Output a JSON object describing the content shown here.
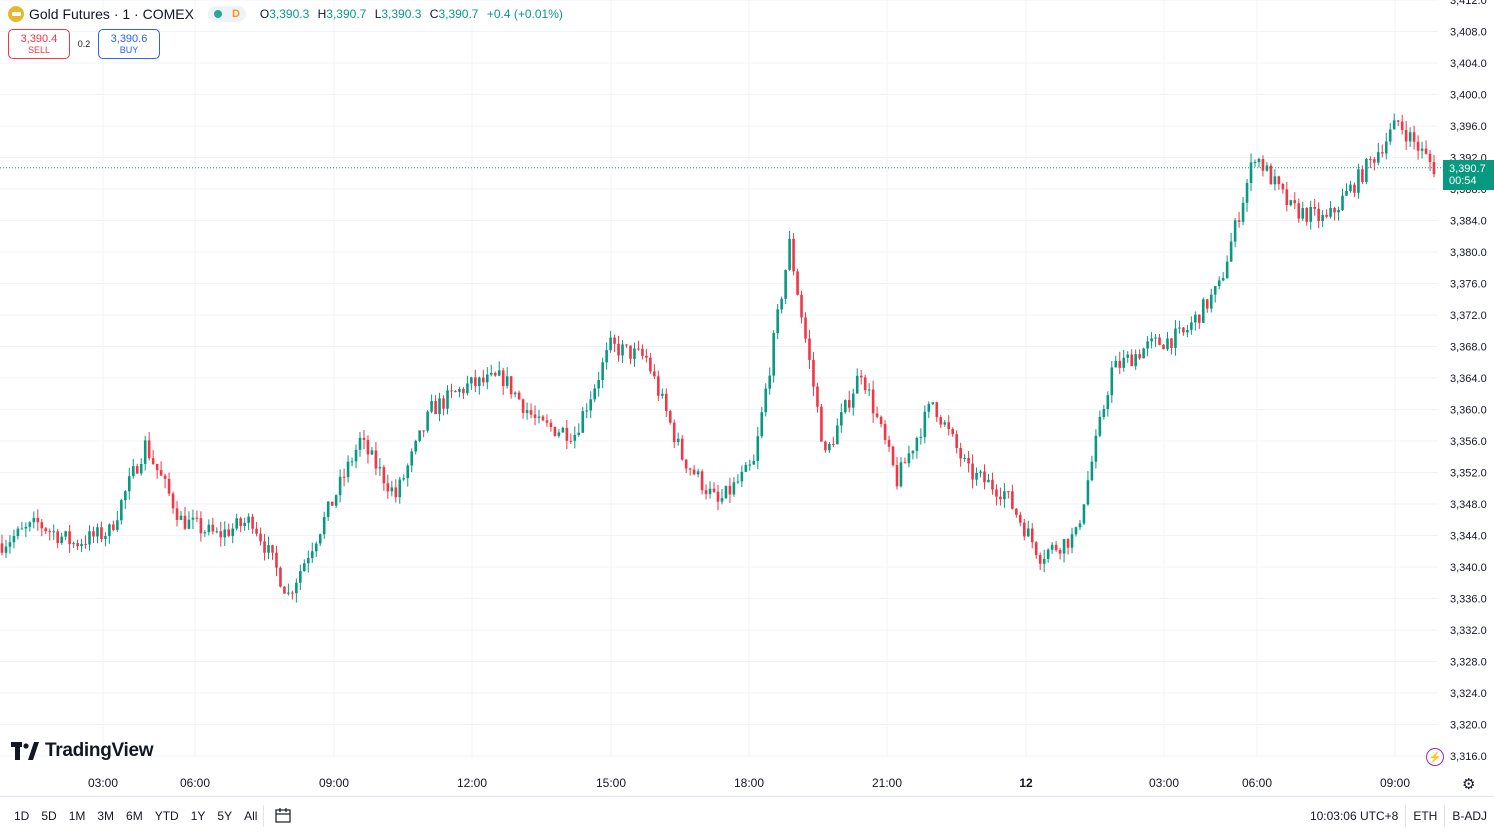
{
  "header": {
    "title": "Gold Futures · 1 · COMEX",
    "status_letter": "D",
    "ohlc": [
      {
        "key": "O",
        "value": "3,390.3"
      },
      {
        "key": "H",
        "value": "3,390.7"
      },
      {
        "key": "L",
        "value": "3,390.3"
      },
      {
        "key": "C",
        "value": "3,390.7"
      }
    ],
    "change": "+0.4 (+0.01%)"
  },
  "trade": {
    "sell_price": "3,390.4",
    "sell_label": "SELL",
    "spread": "0.2",
    "buy_price": "3,390.6",
    "buy_label": "BUY"
  },
  "last_price": {
    "price": "3,390.7",
    "countdown": "00:54"
  },
  "logo": "TradingView",
  "bottom": {
    "ranges": [
      "1D",
      "5D",
      "1M",
      "3M",
      "6M",
      "YTD",
      "1Y",
      "5Y",
      "All"
    ],
    "time": "10:03:06 UTC+8",
    "session": "ETH",
    "adjust": "B-ADJ"
  },
  "colors": {
    "up": "#089981",
    "down": "#f23645",
    "gold": "#e9b72f",
    "grid": "#f0f3fa"
  },
  "chart_data": {
    "type": "candlestick",
    "y_ticks": [
      "3,412.0",
      "3,408.0",
      "3,404.0",
      "3,400.0",
      "3,396.0",
      "3,392.0",
      "3,388.0",
      "3,384.0",
      "3,380.0",
      "3,376.0",
      "3,372.0",
      "3,368.0",
      "3,364.0",
      "3,360.0",
      "3,356.0",
      "3,352.0",
      "3,348.0",
      "3,344.0",
      "3,340.0",
      "3,336.0",
      "3,332.0",
      "3,328.0",
      "3,324.0",
      "3,320.0",
      "3,316.0"
    ],
    "x_ticks": [
      "03:00",
      "06:00",
      "09:00",
      "12:00",
      "15:00",
      "18:00",
      "21:00",
      "12",
      "03:00",
      "06:00",
      "09:00"
    ],
    "ylim": [
      3313.0,
      3412.0
    ],
    "last": 3390.7,
    "series": [
      {
        "t": "00:00",
        "close": 3343.0
      },
      {
        "t": "01:00",
        "close": 3345.5
      },
      {
        "t": "02:00",
        "close": 3343.0
      },
      {
        "t": "03:00",
        "close": 3344.5
      },
      {
        "t": "04:00",
        "close": 3355.5
      },
      {
        "t": "05:00",
        "close": 3346.0
      },
      {
        "t": "06:00",
        "close": 3344.0
      },
      {
        "t": "07:00",
        "close": 3346.0
      },
      {
        "t": "07:15",
        "close": 3336.5
      },
      {
        "t": "08:00",
        "close": 3346.0
      },
      {
        "t": "09:00",
        "close": 3356.0
      },
      {
        "t": "10:00",
        "close": 3349.0
      },
      {
        "t": "11:00",
        "close": 3360.0
      },
      {
        "t": "12:00",
        "close": 3363.0
      },
      {
        "t": "13:00",
        "close": 3364.0
      },
      {
        "t": "14:00",
        "close": 3358.0
      },
      {
        "t": "15:00",
        "close": 3357.0
      },
      {
        "t": "16:00",
        "close": 3368.0
      },
      {
        "t": "17:00",
        "close": 3366.5
      },
      {
        "t": "18:00",
        "close": 3354.0
      },
      {
        "t": "19:00",
        "close": 3348.0
      },
      {
        "t": "20:00",
        "close": 3353.0
      },
      {
        "t": "20:45",
        "close": 3381.0
      },
      {
        "t": "21:15",
        "close": 3354.0
      },
      {
        "t": "21:30",
        "close": 3365.0
      },
      {
        "t": "22:00",
        "close": 3351.0
      },
      {
        "t": "23:00",
        "close": 3361.0
      },
      {
        "t": "00:00",
        "close": 3352.0
      },
      {
        "t": "01:00",
        "close": 3349.5
      },
      {
        "t": "02:00",
        "close": 3341.5
      },
      {
        "t": "02:20",
        "close": 3344.0
      },
      {
        "t": "02:40",
        "close": 3365.0
      },
      {
        "t": "04:00",
        "close": 3368.0
      },
      {
        "t": "05:00",
        "close": 3369.5
      },
      {
        "t": "06:00",
        "close": 3375.5
      },
      {
        "t": "07:00",
        "close": 3392.5
      },
      {
        "t": "07:30",
        "close": 3385.5
      },
      {
        "t": "08:00",
        "close": 3384.0
      },
      {
        "t": "09:00",
        "close": 3390.0
      },
      {
        "t": "09:30",
        "close": 3396.5
      },
      {
        "t": "10:03",
        "close": 3390.7
      }
    ]
  }
}
